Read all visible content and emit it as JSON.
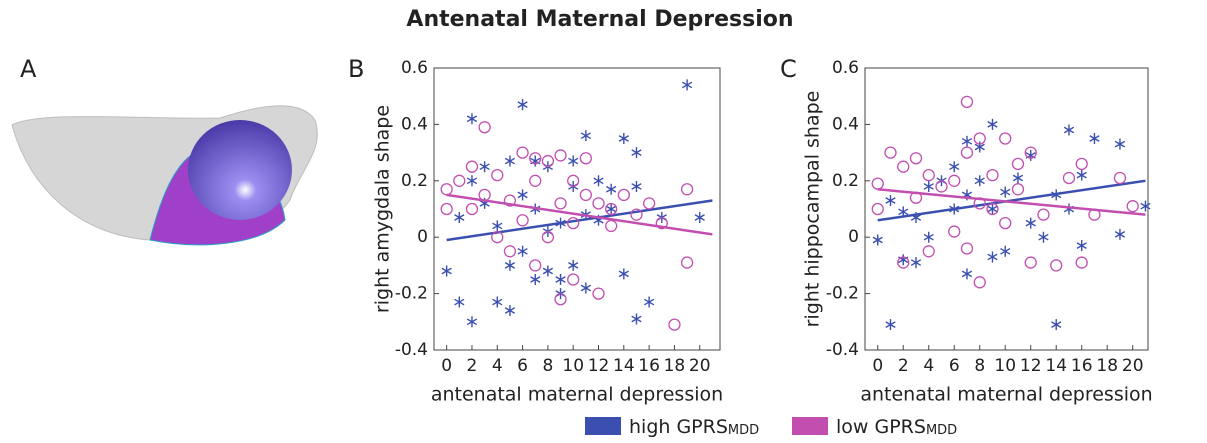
{
  "figure": {
    "title": "Antenatal Maternal Depression",
    "panel_a": "A"
  },
  "chart_data": [
    {
      "type": "scatter",
      "label": "B",
      "x_label": "antenatal maternal depression",
      "y_label": "right amygdala shape",
      "xlim": [
        -1,
        21.6
      ],
      "ylim": [
        -0.4,
        0.6
      ],
      "xticks": [
        0,
        2,
        4,
        6,
        8,
        10,
        12,
        14,
        16,
        18,
        20
      ],
      "yticks": [
        -0.4,
        -0.2,
        0,
        0.2,
        0.4,
        0.6
      ],
      "series": [
        {
          "name": "high GPRS",
          "sub": "MDD",
          "color": "#3a4fb0",
          "marker": "star",
          "x": [
            0,
            1,
            1,
            2,
            2,
            2,
            3,
            3,
            4,
            4,
            5,
            5,
            5,
            6,
            6,
            6,
            7,
            7,
            7,
            8,
            8,
            8,
            9,
            9,
            9,
            10,
            10,
            10,
            11,
            11,
            11,
            12,
            12,
            13,
            13,
            14,
            14,
            15,
            15,
            15,
            16,
            17,
            19,
            20
          ],
          "values": [
            -0.12,
            0.07,
            -0.23,
            0.42,
            -0.3,
            0.2,
            0.25,
            0.12,
            0.04,
            -0.23,
            0.27,
            -0.26,
            -0.1,
            0.47,
            0.15,
            -0.05,
            0.27,
            -0.15,
            0.1,
            -0.12,
            0.02,
            0.25,
            0.05,
            -0.2,
            -0.15,
            0.27,
            -0.1,
            0.18,
            0.36,
            -0.18,
            0.08,
            0.2,
            0.06,
            0.17,
            0.1,
            0.35,
            -0.13,
            0.3,
            -0.29,
            0.18,
            -0.23,
            0.07,
            0.54,
            0.07
          ],
          "fit": {
            "x": [
              0,
              21
            ],
            "values": [
              -0.01,
              0.13
            ]
          }
        },
        {
          "name": "low GPRS",
          "sub": "MDD",
          "color": "#c24fb0",
          "marker": "circle",
          "x": [
            0,
            0,
            1,
            2,
            2,
            3,
            3,
            4,
            4,
            5,
            5,
            6,
            6,
            7,
            7,
            7,
            8,
            8,
            9,
            9,
            9,
            10,
            10,
            10,
            11,
            11,
            12,
            12,
            13,
            13,
            14,
            15,
            16,
            17,
            18,
            19,
            19
          ],
          "values": [
            0.17,
            0.1,
            0.2,
            0.1,
            0.25,
            0.39,
            0.15,
            0.22,
            0.0,
            0.13,
            -0.05,
            0.3,
            0.06,
            0.2,
            -0.1,
            0.28,
            0.27,
            0.0,
            0.29,
            -0.22,
            0.12,
            0.2,
            -0.15,
            0.05,
            0.28,
            0.15,
            0.12,
            -0.2,
            0.1,
            0.04,
            0.15,
            0.08,
            0.12,
            0.05,
            -0.31,
            0.17,
            -0.09
          ],
          "fit": {
            "x": [
              0,
              21
            ],
            "values": [
              0.15,
              0.01
            ]
          }
        }
      ]
    },
    {
      "type": "scatter",
      "label": "C",
      "x_label": "antenatal maternal depression",
      "y_label": "right hippocampal shape",
      "xlim": [
        -1,
        21.2
      ],
      "ylim": [
        -0.4,
        0.6
      ],
      "xticks": [
        0,
        2,
        4,
        6,
        8,
        10,
        12,
        14,
        16,
        18,
        20
      ],
      "yticks": [
        -0.4,
        -0.2,
        0,
        0.2,
        0.4,
        0.6
      ],
      "series": [
        {
          "name": "high GPRS",
          "sub": "MDD",
          "color": "#3a4fb0",
          "marker": "star",
          "x": [
            0,
            1,
            1,
            2,
            2,
            3,
            3,
            4,
            4,
            5,
            6,
            6,
            7,
            7,
            7,
            8,
            8,
            9,
            9,
            9,
            10,
            10,
            11,
            12,
            12,
            13,
            14,
            14,
            15,
            15,
            16,
            16,
            17,
            19,
            19,
            21
          ],
          "values": [
            -0.01,
            -0.31,
            0.13,
            -0.08,
            0.09,
            0.07,
            -0.09,
            0.18,
            0.0,
            0.2,
            0.25,
            0.1,
            0.34,
            -0.13,
            0.15,
            0.32,
            0.2,
            0.4,
            -0.07,
            0.1,
            0.16,
            -0.05,
            0.21,
            0.29,
            0.05,
            0.0,
            -0.31,
            0.15,
            0.38,
            0.1,
            -0.03,
            0.22,
            0.35,
            0.33,
            0.01,
            0.11
          ],
          "fit": {
            "x": [
              0,
              21
            ],
            "values": [
              0.06,
              0.2
            ]
          }
        },
        {
          "name": "low GPRS",
          "sub": "MDD",
          "color": "#c24fb0",
          "marker": "circle",
          "x": [
            0,
            0,
            1,
            2,
            2,
            3,
            3,
            4,
            4,
            5,
            6,
            6,
            7,
            7,
            7,
            8,
            8,
            8,
            9,
            9,
            10,
            10,
            11,
            11,
            12,
            12,
            13,
            14,
            15,
            16,
            16,
            17,
            19,
            20
          ],
          "values": [
            0.19,
            0.1,
            0.3,
            0.25,
            -0.09,
            0.28,
            0.14,
            0.22,
            -0.05,
            0.18,
            0.2,
            0.02,
            0.48,
            0.3,
            -0.04,
            0.35,
            0.12,
            -0.16,
            0.22,
            0.1,
            0.35,
            0.05,
            0.26,
            0.17,
            0.3,
            -0.09,
            0.08,
            -0.1,
            0.21,
            0.26,
            -0.09,
            0.08,
            0.21,
            0.11
          ],
          "fit": {
            "x": [
              0,
              21
            ],
            "values": [
              0.17,
              0.08
            ]
          }
        }
      ]
    }
  ]
}
